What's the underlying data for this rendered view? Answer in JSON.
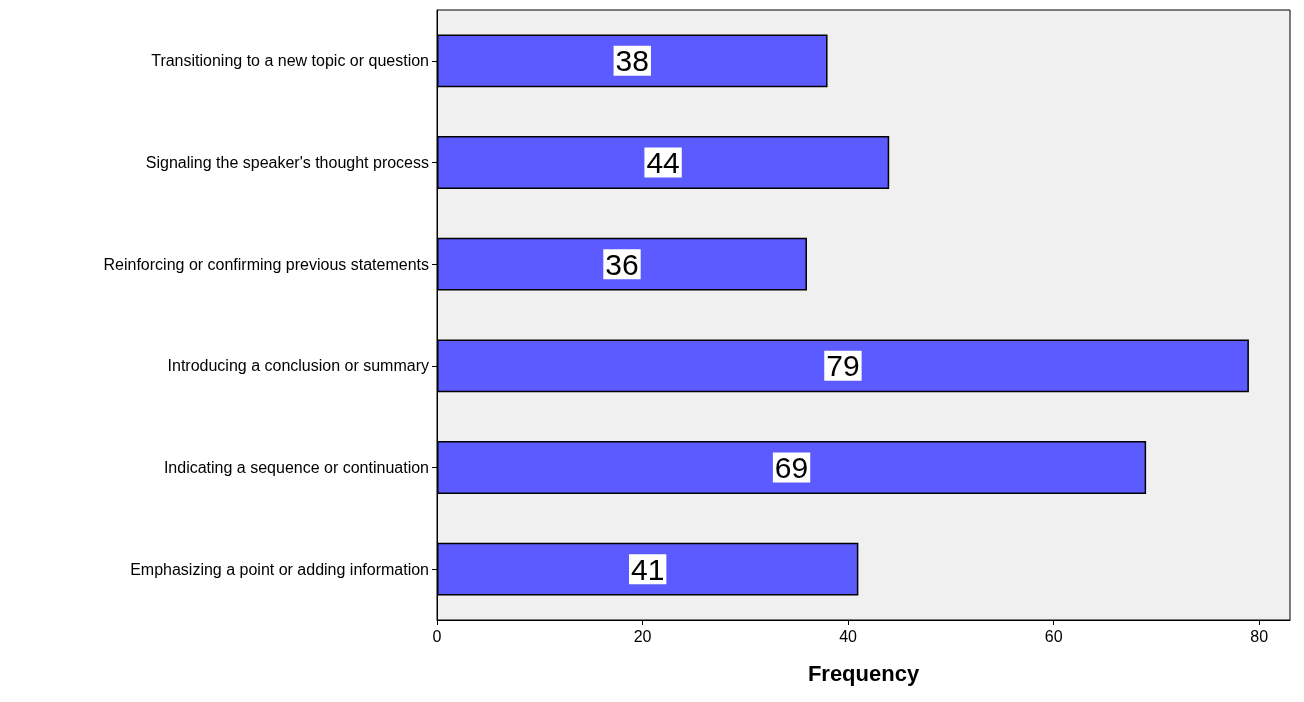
{
  "chart_data": {
    "type": "bar",
    "orientation": "horizontal",
    "xlabel": "Frequency",
    "categories": [
      "Transitioning to a new topic or question",
      "Signaling the speaker's thought process",
      "Reinforcing or confirming previous statements",
      "Introducing a conclusion or summary",
      "Indicating a sequence or continuation",
      "Emphasizing a point or adding information"
    ],
    "values": [
      38,
      44,
      36,
      79,
      69,
      41
    ],
    "color": "#5b5bff",
    "xlim": [
      0,
      83
    ],
    "xticks": [
      0,
      20,
      40,
      60,
      80
    ],
    "grid": false,
    "data_labels": true
  }
}
